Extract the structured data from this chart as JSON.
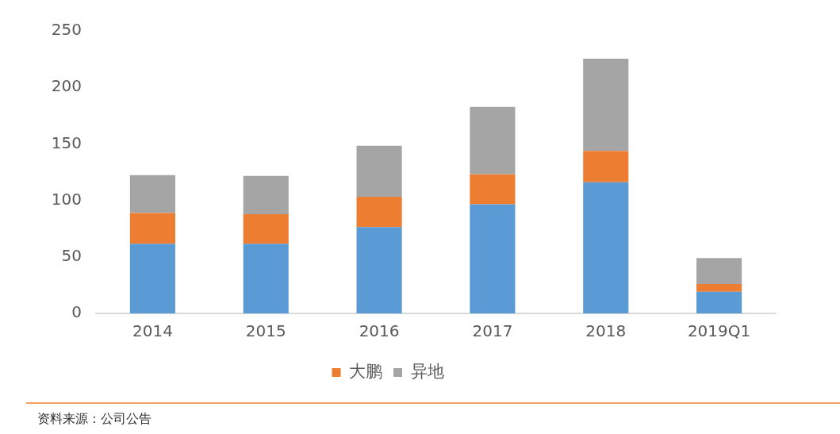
{
  "chart_data": {
    "type": "bar",
    "stacked": true,
    "categories": [
      "2014",
      "2015",
      "2016",
      "2017",
      "2018",
      "2019Q1"
    ],
    "series": [
      {
        "color": "#5b9bd5",
        "values": [
          61.6,
          61.6,
          76.4,
          96.6,
          116.0,
          19.2
        ]
      },
      {
        "name": "大鹏",
        "color": "#ed7d31",
        "values": [
          27.2,
          26.1,
          26.8,
          26.4,
          27.7,
          6.8
        ]
      },
      {
        "name": "异地",
        "color": "#a5a5a5",
        "values": [
          33.5,
          33.9,
          45.2,
          59.8,
          81.7,
          22.9
        ]
      }
    ],
    "ylim": [
      0,
      250
    ],
    "yticks": [
      0,
      50,
      100,
      150,
      200,
      250
    ],
    "legend": "bottom",
    "annotations": [
      "资料来源：公司公告"
    ]
  }
}
